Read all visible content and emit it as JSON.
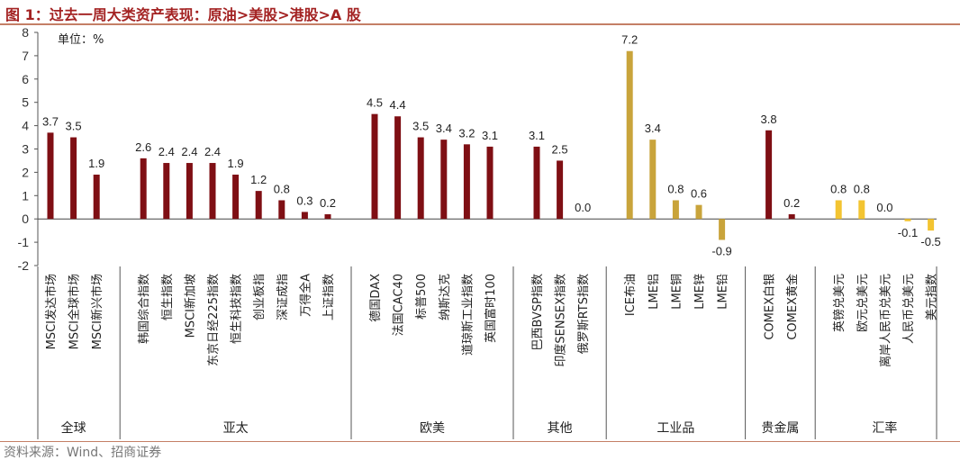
{
  "title": "图 1：过去一周大类资产表现：原油>美股>港股>A 股",
  "source": "资料来源：Wind、招商证券",
  "colors": {
    "dark": "#7f0f14",
    "gold": "#c9a43b",
    "yellow": "#f3c431",
    "title": "#a32222",
    "rule": "#c47f66"
  },
  "chart_data": {
    "type": "bar",
    "unit_label": "单位：%",
    "ylim": [
      -2,
      8
    ],
    "yticks": [
      -2,
      -1,
      0,
      1,
      2,
      3,
      4,
      5,
      6,
      7,
      8
    ],
    "ytick_labels": [
      "-2",
      "-1",
      "0",
      "1",
      "2",
      "3",
      "4",
      "5",
      "6",
      "7",
      "8"
    ],
    "groups": [
      {
        "name": "全球",
        "categories": [
          {
            "label": "MSCI发达市场",
            "value": 3.7,
            "value_label": "3.7",
            "color": "dark"
          },
          {
            "label": "MSCI全球市场",
            "value": 3.5,
            "value_label": "3.5",
            "color": "dark"
          },
          {
            "label": "MSCI新兴市场",
            "value": 1.9,
            "value_label": "1.9",
            "color": "dark"
          }
        ]
      },
      {
        "name": "亚太",
        "categories": [
          {
            "label": "韩国综合指数",
            "value": 2.6,
            "value_label": "2.6",
            "color": "dark"
          },
          {
            "label": "恒生指数",
            "value": 2.4,
            "value_label": "2.4",
            "color": "dark"
          },
          {
            "label": "MSCI新加坡",
            "value": 2.4,
            "value_label": "2.4",
            "color": "dark"
          },
          {
            "label": "东京日经225指数",
            "value": 2.4,
            "value_label": "2.4",
            "color": "dark"
          },
          {
            "label": "恒生科技指数",
            "value": 1.9,
            "value_label": "1.9",
            "color": "dark"
          },
          {
            "label": "创业板指",
            "value": 1.2,
            "value_label": "1.2",
            "color": "dark"
          },
          {
            "label": "深证成指",
            "value": 0.8,
            "value_label": "0.8",
            "color": "dark"
          },
          {
            "label": "万得全A",
            "value": 0.3,
            "value_label": "0.3",
            "color": "dark"
          },
          {
            "label": "上证指数",
            "value": 0.2,
            "value_label": "0.2",
            "color": "dark"
          }
        ]
      },
      {
        "name": "欧美",
        "categories": [
          {
            "label": "德国DAX",
            "value": 4.5,
            "value_label": "4.5",
            "color": "dark"
          },
          {
            "label": "法国CAC40",
            "value": 4.4,
            "value_label": "4.4",
            "color": "dark"
          },
          {
            "label": "标普500",
            "value": 3.5,
            "value_label": "3.5",
            "color": "dark"
          },
          {
            "label": "纳斯达克",
            "value": 3.4,
            "value_label": "3.4",
            "color": "dark"
          },
          {
            "label": "道琼斯工业指数",
            "value": 3.2,
            "value_label": "3.2",
            "color": "dark"
          },
          {
            "label": "英国富时100",
            "value": 3.1,
            "value_label": "3.1",
            "color": "dark"
          }
        ]
      },
      {
        "name": "其他",
        "categories": [
          {
            "label": "巴西BVSP指数",
            "value": 3.1,
            "value_label": "3.1",
            "color": "dark"
          },
          {
            "label": "印度SENSEX指数",
            "value": 2.5,
            "value_label": "2.5",
            "color": "dark"
          },
          {
            "label": "俄罗斯RTS指数",
            "value": 0.0,
            "value_label": "0.0",
            "color": "dark"
          }
        ]
      },
      {
        "name": "工业品",
        "categories": [
          {
            "label": "ICE布油",
            "value": 7.2,
            "value_label": "7.2",
            "color": "gold"
          },
          {
            "label": "LME铝",
            "value": 3.4,
            "value_label": "3.4",
            "color": "gold"
          },
          {
            "label": "LME铜",
            "value": 0.8,
            "value_label": "0.8",
            "color": "gold"
          },
          {
            "label": "LME锌",
            "value": 0.6,
            "value_label": "0.6",
            "color": "gold"
          },
          {
            "label": "LME铅",
            "value": -0.9,
            "value_label": "-0.9",
            "color": "gold"
          }
        ]
      },
      {
        "name": "贵金属",
        "categories": [
          {
            "label": "COMEX白银",
            "value": 3.8,
            "value_label": "3.8",
            "color": "dark"
          },
          {
            "label": "COMEX黄金",
            "value": 0.2,
            "value_label": "0.2",
            "color": "dark"
          }
        ]
      },
      {
        "name": "汇率",
        "categories": [
          {
            "label": "英镑兑美元",
            "value": 0.8,
            "value_label": "0.8",
            "color": "yellow"
          },
          {
            "label": "欧元兑美元",
            "value": 0.8,
            "value_label": "0.8",
            "color": "yellow"
          },
          {
            "label": "离岸人民币兑美元",
            "value": 0.0,
            "value_label": "0.0",
            "color": "yellow"
          },
          {
            "label": "人民币兑美元",
            "value": -0.1,
            "value_label": "-0.1",
            "color": "yellow"
          },
          {
            "label": "美元指数",
            "value": -0.5,
            "value_label": "-0.5",
            "color": "yellow"
          }
        ]
      }
    ]
  }
}
